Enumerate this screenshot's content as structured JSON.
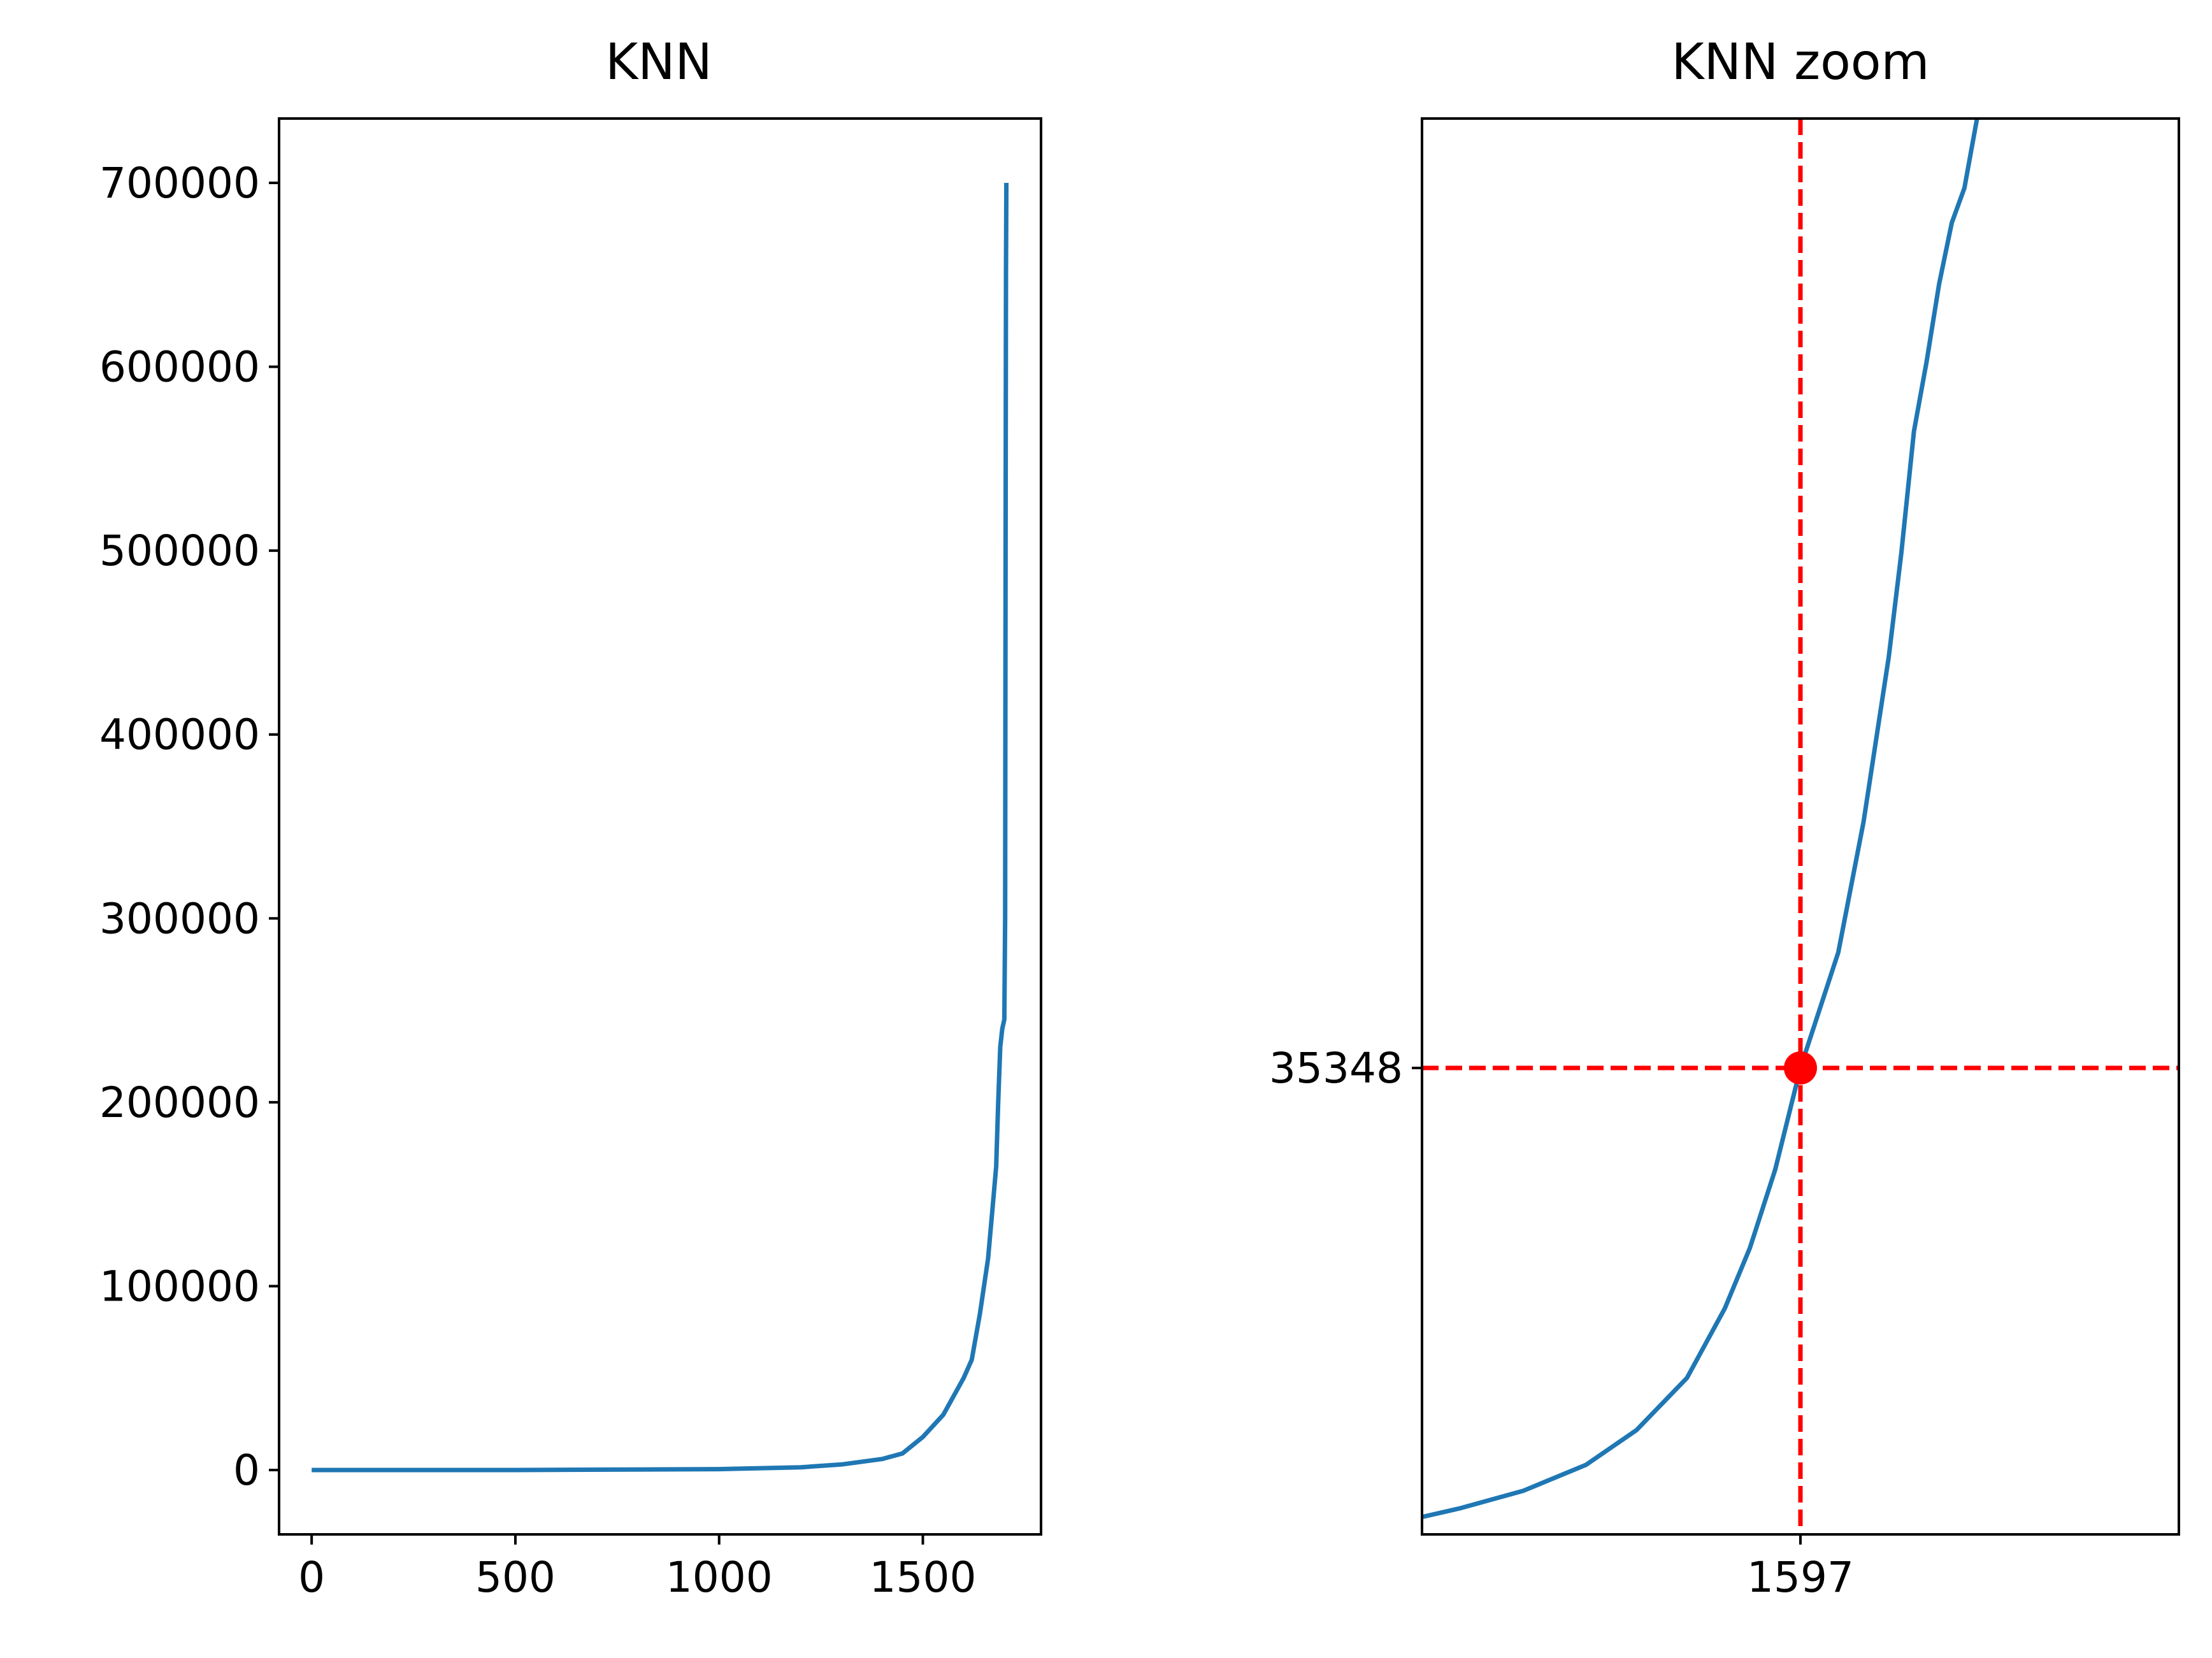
{
  "figure": {
    "background": "#ffffff",
    "line_color": "#1f77b4",
    "marker_color": "#ff0000"
  },
  "chart_data": [
    {
      "type": "line",
      "title": "KNN",
      "xlabel": "",
      "ylabel": "",
      "xlim": [
        -80,
        1790
      ],
      "ylim": [
        -35000,
        735000
      ],
      "xticks": [
        0,
        500,
        1000,
        1500
      ],
      "xtick_labels": [
        "0",
        "500",
        "1000",
        "1500"
      ],
      "yticks": [
        0,
        100000,
        200000,
        300000,
        400000,
        500000,
        600000,
        700000
      ],
      "ytick_labels": [
        "0",
        "100000",
        "200000",
        "300000",
        "400000",
        "500000",
        "600000",
        "700000"
      ],
      "grid": false,
      "series": [
        {
          "color": "#1f77b4",
          "x": [
            0,
            500,
            1000,
            1200,
            1300,
            1400,
            1450,
            1500,
            1550,
            1600,
            1620,
            1640,
            1660,
            1670,
            1680,
            1685,
            1690,
            1695,
            1700,
            1702,
            1703,
            1704,
            1705
          ],
          "y": [
            0,
            0,
            500,
            1500,
            3000,
            6000,
            9000,
            18000,
            30000,
            50000,
            60000,
            85000,
            115000,
            140000,
            165000,
            200000,
            230000,
            240000,
            245000,
            300000,
            500000,
            650000,
            700000
          ]
        }
      ]
    },
    {
      "type": "line",
      "title": "KNN zoom",
      "xlabel": "",
      "ylabel": "",
      "xlim": [
        1567,
        1627
      ],
      "ylim": [
        8500,
        90000
      ],
      "xticks": [
        1597
      ],
      "xtick_labels": [
        "1597"
      ],
      "yticks": [
        35348
      ],
      "ytick_labels": [
        "35348"
      ],
      "grid": false,
      "series": [
        {
          "color": "#1f77b4",
          "x": [
            1567,
            1570,
            1575,
            1580,
            1584,
            1588,
            1591,
            1593,
            1595,
            1597,
            1600,
            1602,
            1604,
            1605,
            1606,
            1607,
            1608,
            1609,
            1610,
            1610.5,
            1611
          ],
          "y": [
            9500,
            10000,
            11000,
            12500,
            14500,
            17500,
            21500,
            25000,
            29500,
            35348,
            42000,
            49500,
            59000,
            65000,
            72000,
            76000,
            80500,
            84000,
            86000,
            88000,
            90000
          ]
        }
      ],
      "reference_lines": {
        "x": 1597,
        "y": 35348,
        "style": "dashed",
        "color": "#ff0000"
      },
      "highlight_point": {
        "x": 1597,
        "y": 35348,
        "color": "#ff0000"
      }
    }
  ]
}
